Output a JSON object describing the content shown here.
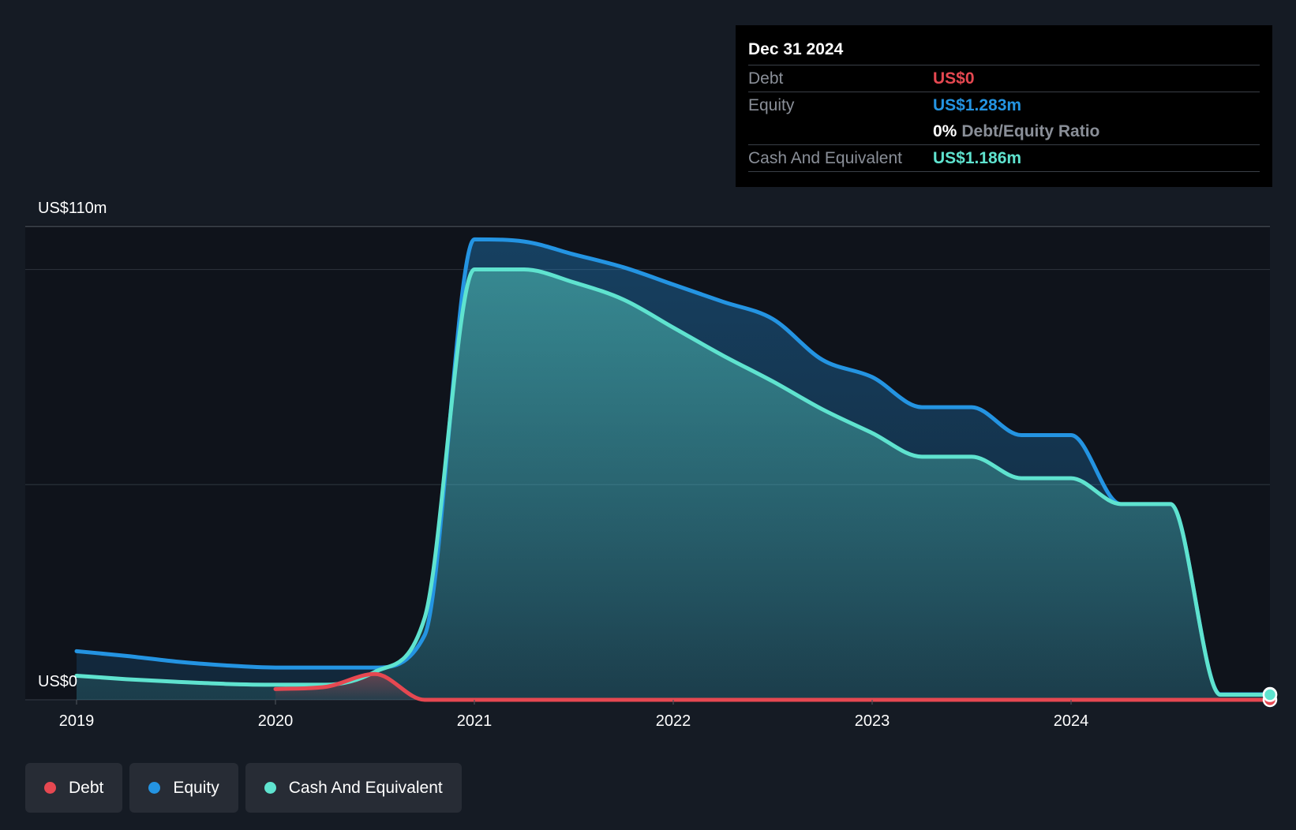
{
  "colors": {
    "debt": "#e64851",
    "equity": "#2494e2",
    "cash": "#5fe3cf",
    "background": "#151b24",
    "tooltip_bg": "#000000"
  },
  "tooltip": {
    "date": "Dec 31 2024",
    "rows": {
      "debt": {
        "label": "Debt",
        "value": "US$0"
      },
      "equity": {
        "label": "Equity",
        "value": "US$1.283m"
      },
      "ratio": {
        "value": "0%",
        "label": "Debt/Equity Ratio"
      },
      "cash": {
        "label": "Cash And Equivalent",
        "value": "US$1.186m"
      }
    }
  },
  "legend": {
    "debt": {
      "label": "Debt",
      "icon": "dot-icon"
    },
    "equity": {
      "label": "Equity",
      "icon": "dot-icon"
    },
    "cash": {
      "label": "Cash And Equivalent",
      "icon": "dot-icon"
    }
  },
  "chart_data": {
    "type": "area",
    "title": "",
    "xlabel": "",
    "ylabel": "",
    "y_top_label": "US$110m",
    "y_bottom_label": "US$0",
    "ylim": [
      0,
      110
    ],
    "xlim": [
      2019.0,
      2025.0
    ],
    "x_ticks": [
      "2019",
      "2020",
      "2021",
      "2022",
      "2023",
      "2024"
    ],
    "grid": true,
    "legend_position": "bottom-left",
    "series": [
      {
        "name": "Debt",
        "key": "debt",
        "points": [
          [
            2020.0,
            2.5
          ],
          [
            2020.25,
            3.0
          ],
          [
            2020.5,
            6.0
          ],
          [
            2020.75,
            0.0
          ],
          [
            2021.0,
            0.0
          ],
          [
            2022.0,
            0.0
          ],
          [
            2023.0,
            0.0
          ],
          [
            2024.0,
            0.0
          ],
          [
            2024.75,
            0.0
          ],
          [
            2025.0,
            0.0
          ]
        ]
      },
      {
        "name": "Equity",
        "key": "equity",
        "points": [
          [
            2019.0,
            11.3
          ],
          [
            2019.25,
            10.2
          ],
          [
            2019.5,
            8.9
          ],
          [
            2019.75,
            8.0
          ],
          [
            2020.0,
            7.5
          ],
          [
            2020.25,
            7.5
          ],
          [
            2020.5,
            7.5
          ],
          [
            2020.75,
            15.0
          ],
          [
            2021.0,
            107.0
          ],
          [
            2021.25,
            106.5
          ],
          [
            2021.5,
            103.5
          ],
          [
            2021.75,
            100.5
          ],
          [
            2022.0,
            96.5
          ],
          [
            2022.25,
            92.5
          ],
          [
            2022.5,
            88.5
          ],
          [
            2022.75,
            79.0
          ],
          [
            2023.0,
            75.0
          ],
          [
            2023.25,
            68.0
          ],
          [
            2023.5,
            68.0
          ],
          [
            2023.75,
            61.5
          ],
          [
            2024.0,
            61.5
          ],
          [
            2024.25,
            45.5
          ],
          [
            2024.5,
            45.5
          ],
          [
            2024.75,
            1.283
          ],
          [
            2025.0,
            1.283
          ]
        ]
      },
      {
        "name": "Cash And Equivalent",
        "key": "cash",
        "points": [
          [
            2019.0,
            5.6
          ],
          [
            2019.25,
            4.8
          ],
          [
            2019.5,
            4.2
          ],
          [
            2019.75,
            3.7
          ],
          [
            2020.0,
            3.5
          ],
          [
            2020.25,
            3.5
          ],
          [
            2020.5,
            6.5
          ],
          [
            2020.75,
            19.0
          ],
          [
            2021.0,
            100.0
          ],
          [
            2021.25,
            100.0
          ],
          [
            2021.5,
            97.0
          ],
          [
            2021.75,
            93.0
          ],
          [
            2022.0,
            86.5
          ],
          [
            2022.25,
            80.0
          ],
          [
            2022.5,
            74.0
          ],
          [
            2022.75,
            67.5
          ],
          [
            2023.0,
            62.0
          ],
          [
            2023.25,
            56.5
          ],
          [
            2023.5,
            56.5
          ],
          [
            2023.75,
            51.5
          ],
          [
            2024.0,
            51.5
          ],
          [
            2024.25,
            45.5
          ],
          [
            2024.5,
            45.5
          ],
          [
            2024.75,
            1.186
          ],
          [
            2025.0,
            1.186
          ]
        ]
      }
    ]
  }
}
